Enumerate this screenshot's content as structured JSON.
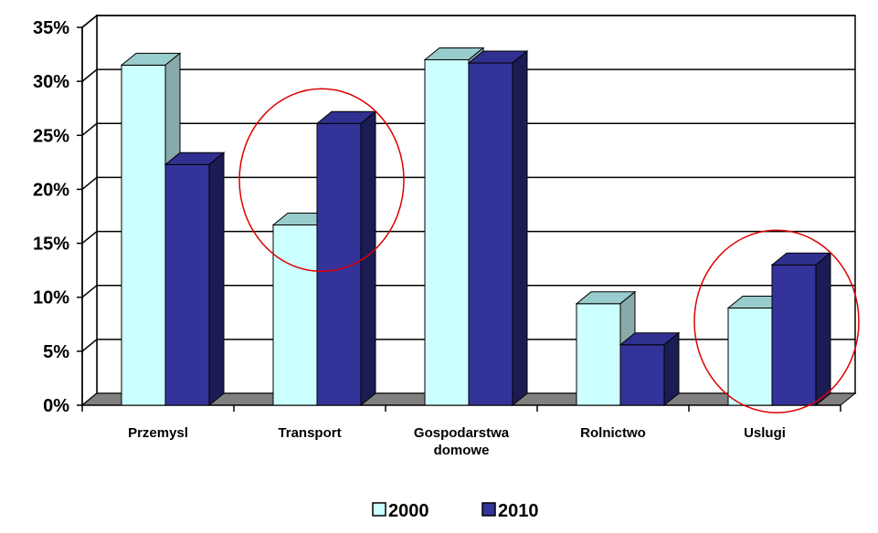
{
  "chart_data": {
    "type": "bar",
    "title": "",
    "xlabel": "",
    "ylabel": "",
    "categories": [
      [
        "Przemysl"
      ],
      [
        "Transport"
      ],
      [
        "Gospodarstwa",
        "domowe"
      ],
      [
        "Rolnictwo"
      ],
      [
        "Uslugi"
      ]
    ],
    "series": [
      {
        "name": "2000",
        "values": [
          31.5,
          16.7,
          32.0,
          9.4,
          9.0
        ],
        "color": "#ccffff"
      },
      {
        "name": "2010",
        "values": [
          22.3,
          26.1,
          31.7,
          5.6,
          13.0
        ],
        "color": "#333399"
      }
    ],
    "ylim": [
      0,
      35
    ],
    "yticks": [
      "0%",
      "5%",
      "10%",
      "15%",
      "20%",
      "25%",
      "30%",
      "35%"
    ],
    "grid": true,
    "legend_position": "bottom-center",
    "highlighted_categories": [
      "Transport",
      "Uslugi"
    ],
    "highlight_color": "#dd0000"
  }
}
